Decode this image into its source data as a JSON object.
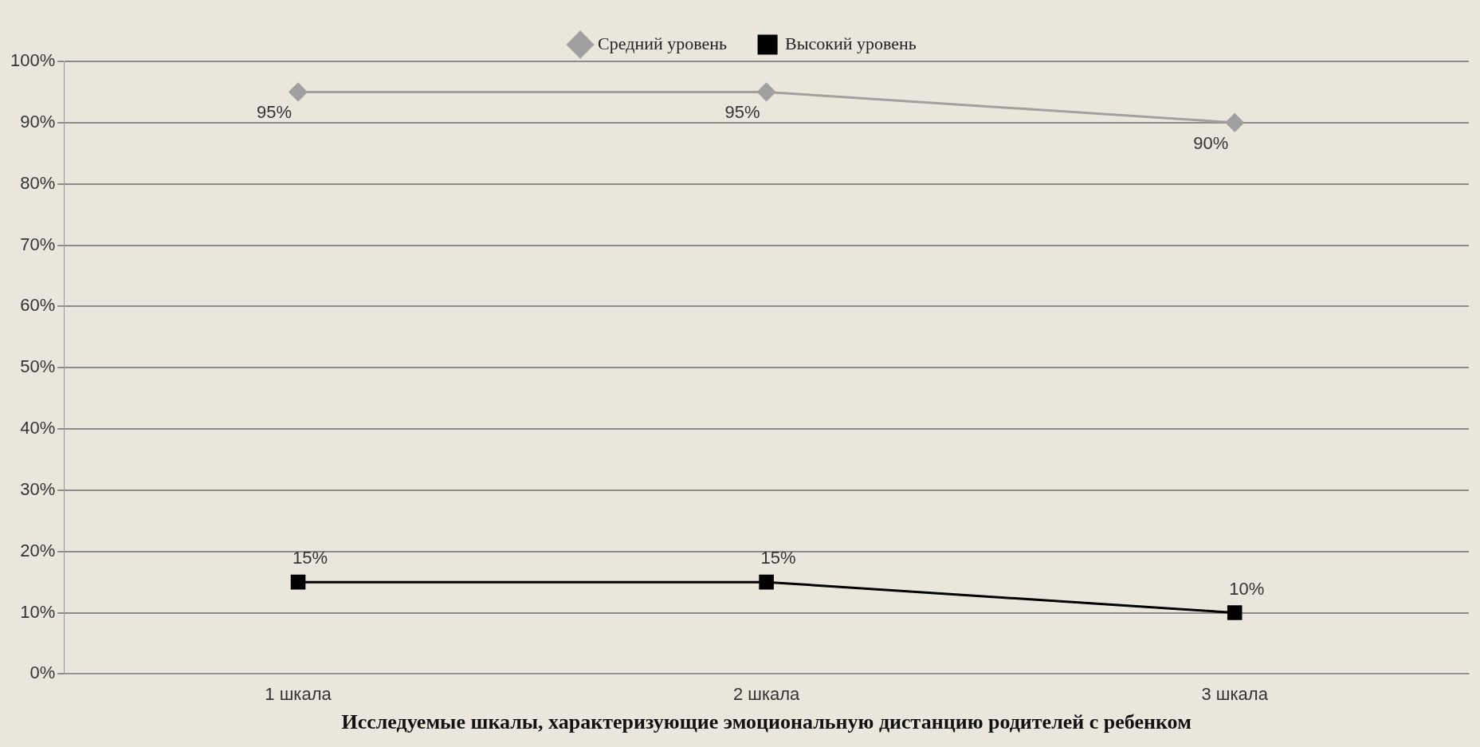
{
  "chart_data": {
    "type": "line",
    "xlabel": "Исследуемые шкалы, характеризующие эмоциональную дистанцию родителей с ребенком",
    "categories": [
      "1 шкала",
      "2 шкала",
      "3 шкала"
    ],
    "series": [
      {
        "name": "Средний уровень",
        "color": "#a0a0a0",
        "values": [
          95,
          95,
          90
        ],
        "value_labels": [
          "95%",
          "95%",
          "90%"
        ],
        "marker": "diamond"
      },
      {
        "name": "Высокий уровень",
        "color": "#000000",
        "values": [
          15,
          15,
          10
        ],
        "value_labels": [
          "15%",
          "15%",
          "10%"
        ],
        "marker": "square"
      }
    ],
    "ylim": [
      0,
      100
    ],
    "yticks": [
      {
        "value": 0,
        "label": "0%"
      },
      {
        "value": 10,
        "label": "10%"
      },
      {
        "value": 20,
        "label": "20%"
      },
      {
        "value": 30,
        "label": "30%"
      },
      {
        "value": 40,
        "label": "40%"
      },
      {
        "value": 50,
        "label": "50%"
      },
      {
        "value": 60,
        "label": "60%"
      },
      {
        "value": 70,
        "label": "70%"
      },
      {
        "value": 80,
        "label": "80%"
      },
      {
        "value": 90,
        "label": "90%"
      },
      {
        "value": 100,
        "label": "100%"
      }
    ],
    "grid": "y",
    "legend": "top",
    "line_style": "solid"
  }
}
